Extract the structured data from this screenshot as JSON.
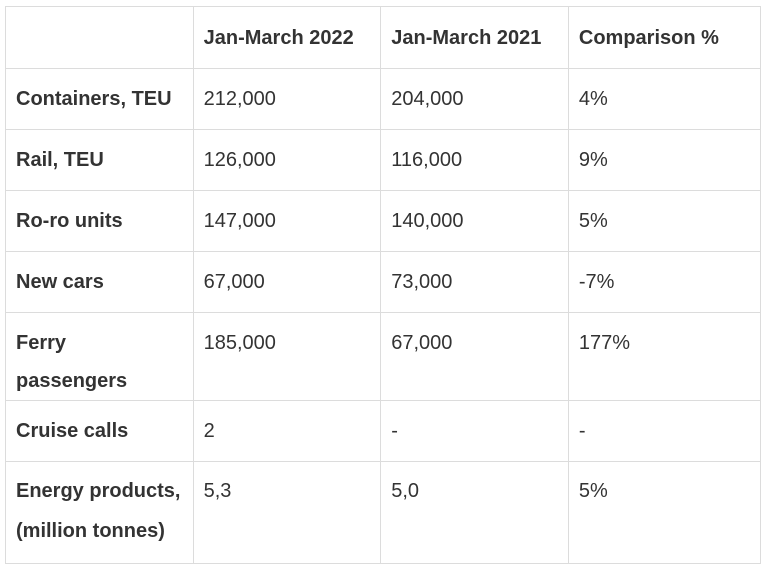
{
  "table": {
    "headers": [
      "",
      "Jan-March 2022",
      "Jan-March 2021",
      "Comparison %"
    ],
    "rows": [
      {
        "label": "Containers, TEU",
        "values": [
          "212,000",
          "204,000",
          "4%"
        ]
      },
      {
        "label": "Rail, TEU",
        "values": [
          "126,000",
          "116,000",
          "9%"
        ]
      },
      {
        "label": "Ro-ro units",
        "values": [
          "147,000",
          "140,000",
          "5%"
        ]
      },
      {
        "label": "New cars",
        "values": [
          "67,000",
          "73,000",
          "-7%"
        ]
      },
      {
        "label": "Ferry passengers",
        "values": [
          "185,000",
          "67,000",
          "177%"
        ]
      },
      {
        "label": "Cruise calls",
        "values": [
          "2",
          "-",
          "-"
        ]
      },
      {
        "label_lines": [
          "Energy products,",
          "(million tonnes)"
        ],
        "values": [
          "5,3",
          "5,0",
          "5%"
        ]
      }
    ]
  }
}
